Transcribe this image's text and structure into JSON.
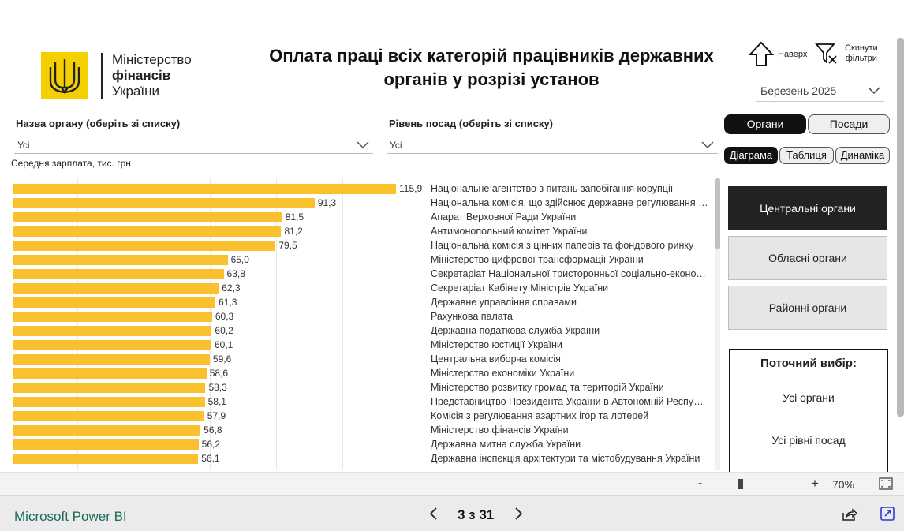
{
  "header": {
    "logo_line1": "Міністерство",
    "logo_line2": "фінансів",
    "logo_line3": "України",
    "title": "Оплата праці всіх категорій працівників державних органів у розрізі установ",
    "up_label": "Наверх",
    "reset_label_1": "Скинути",
    "reset_label_2": "фільтри",
    "month": "Березень 2025"
  },
  "filters": {
    "org_label": "Назва органу (оберіть зі списку)",
    "org_value": "Усі",
    "level_label": "Рівень посад (оберіть зі списку)",
    "level_value": "Усі"
  },
  "toggles": {
    "organs": "Органи",
    "positions": "Посади",
    "diagram": "Діаграма",
    "table": "Таблиця",
    "dynamics": "Динаміка"
  },
  "levels": {
    "central": "Центральні органи",
    "regional": "Обласні органи",
    "district": "Районні органи"
  },
  "current": {
    "title": "Поточний вибір:",
    "organs": "Усі органи",
    "positions": "Усі рівні посад"
  },
  "chart_data": {
    "type": "bar",
    "orientation": "horizontal",
    "ylabel": "Середня зарплата, тис. грн",
    "bar_color": "#fbc02d",
    "categories": [
      "Національне агентство з питань запобігання корупції",
      "Національна комісія, що здійснює державне регулювання у сферах енергетики та комунальних послуг",
      "Апарат Верховної Ради України",
      "Антимонопольний комітет України",
      "Національна комісія з цінних паперів та фондового ринку",
      "Міністерство цифрової трансформації України",
      "Секретаріат Національної тристоронньої соціально-економічної ради",
      "Секретаріат Кабінету Міністрів України",
      "Державне управління справами",
      "Рахункова палата",
      "Державна податкова служба України",
      "Міністерство юстиції України",
      "Центральна виборча комісія",
      "Міністерство економіки України",
      "Міністерство розвитку громад та територій України",
      "Представництво Президента України в Автономній Республіці Крим",
      "Комісія з регулювання азартних ігор та лотерей",
      "Міністерство фінансів України",
      "Державна митна служба України",
      "Державна інспекція архітектури та містобудування України"
    ],
    "values": [
      115.9,
      91.3,
      81.5,
      81.2,
      79.5,
      65.0,
      63.8,
      62.3,
      61.3,
      60.3,
      60.2,
      60.1,
      59.6,
      58.6,
      58.3,
      58.1,
      57.9,
      56.8,
      56.2,
      56.1
    ],
    "value_labels": [
      "115,9",
      "91,3",
      "81,5",
      "81,2",
      "79,5",
      "65,0",
      "63,8",
      "62,3",
      "61,3",
      "60,3",
      "60,2",
      "60,1",
      "59,6",
      "58,6",
      "58,3",
      "58,1",
      "57,9",
      "56,8",
      "56,2",
      "56,1"
    ],
    "xlim": [
      0,
      120
    ]
  },
  "zoom": {
    "level": "70%"
  },
  "footer": {
    "brand": "Microsoft Power BI",
    "page": "3 з 31"
  }
}
